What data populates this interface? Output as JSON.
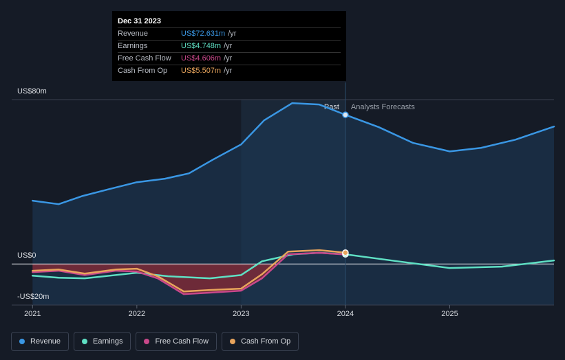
{
  "chart_data": {
    "type": "line",
    "xlim": [
      2020.8,
      2026.0
    ],
    "xticks": [
      2021,
      2022,
      2023,
      2024,
      2025
    ],
    "ylim": [
      -20,
      80
    ],
    "yticks": [
      {
        "value": 80,
        "label": "US$80m"
      },
      {
        "value": 0,
        "label": "US$0"
      },
      {
        "value": -20,
        "label": "-US$20m"
      }
    ],
    "highlight": [
      2023,
      2024
    ],
    "divider_x": 2024,
    "annotations": {
      "past": "Past",
      "forecast": "Analysts Forecasts"
    },
    "series": [
      {
        "name": "Revenue",
        "color": "#3a97e4",
        "x": [
          2021.0,
          2021.25,
          2021.48,
          2021.74,
          2022.0,
          2022.27,
          2022.5,
          2022.73,
          2023.0,
          2023.22,
          2023.49,
          2023.75,
          2024.0,
          2024.32,
          2024.65,
          2025.0,
          2025.3,
          2025.63,
          2026.0
        ],
        "values": [
          30.8,
          29.1,
          33.1,
          36.5,
          39.8,
          41.5,
          44.1,
          50.8,
          58.2,
          69.9,
          78.3,
          77.6,
          72.6,
          66.6,
          58.9,
          54.8,
          56.5,
          60.5,
          66.9
        ]
      },
      {
        "name": "Earnings",
        "color": "#5fe0c4",
        "x": [
          2021.0,
          2021.25,
          2021.5,
          2022.0,
          2022.3,
          2022.7,
          2023.0,
          2023.2,
          2023.5,
          2023.75,
          2024.0,
          2024.5,
          2025.0,
          2025.5,
          2026.0
        ],
        "values": [
          -5.7,
          -6.7,
          -7.0,
          -4.3,
          -6.0,
          -7.0,
          -5.4,
          1.3,
          4.7,
          5.4,
          4.7,
          1.3,
          -2.0,
          -1.3,
          1.7
        ]
      },
      {
        "name": "Free Cash Flow",
        "color": "#c9488a",
        "x": [
          2021.0,
          2021.25,
          2021.5,
          2021.8,
          2022.0,
          2022.2,
          2022.45,
          2022.7,
          2023.0,
          2023.2,
          2023.45,
          2023.75,
          2024.0
        ],
        "values": [
          -4.0,
          -3.3,
          -5.4,
          -3.3,
          -3.7,
          -7.0,
          -14.7,
          -14.0,
          -13.0,
          -7.0,
          4.7,
          5.4,
          4.6
        ]
      },
      {
        "name": "Cash From Op",
        "color": "#e8a45c",
        "x": [
          2021.0,
          2021.25,
          2021.5,
          2021.8,
          2022.0,
          2022.2,
          2022.45,
          2022.7,
          2023.0,
          2023.2,
          2023.45,
          2023.75,
          2024.0
        ],
        "values": [
          -3.3,
          -2.7,
          -4.7,
          -2.7,
          -2.3,
          -6.0,
          -13.4,
          -12.7,
          -12.0,
          -5.0,
          6.0,
          6.7,
          5.5
        ]
      }
    ],
    "tooltip": {
      "date": "Dec 31 2023",
      "rows": [
        {
          "label": "Revenue",
          "value": "US$72.631m",
          "unit": "/yr"
        },
        {
          "label": "Earnings",
          "value": "US$4.748m",
          "unit": "/yr"
        },
        {
          "label": "Free Cash Flow",
          "value": "US$4.606m",
          "unit": "/yr"
        },
        {
          "label": "Cash From Op",
          "value": "US$5.507m",
          "unit": "/yr"
        }
      ]
    }
  }
}
